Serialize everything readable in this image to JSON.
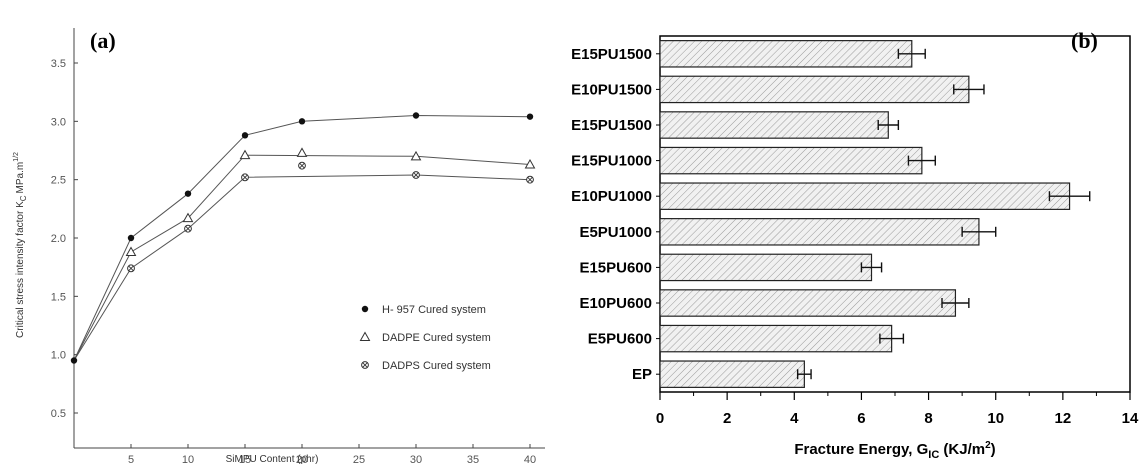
{
  "chart_data": [
    {
      "panel_label": "(a)",
      "type": "line",
      "xlabel": "SiMPU Content (phr)",
      "ylabel": "Critical stress intensity factor K",
      "ylabel_sub": "C",
      "ylabel_unit": "MPa.m",
      "ylabel_sup": "1/2",
      "xlim": [
        0,
        40
      ],
      "ylim": [
        0.2,
        3.8
      ],
      "xticks": [
        "5",
        "10",
        "15",
        "20",
        "25",
        "30",
        "35",
        "40"
      ],
      "yticks": [
        "0.5",
        "1.0",
        "1.5",
        "2.0",
        "2.5",
        "3.0",
        "3.5"
      ],
      "legend_position": "lower-right",
      "series": [
        {
          "name": "H- 957 Cured system",
          "marker": "filled-circle",
          "x": [
            0,
            5,
            10,
            15,
            20,
            30,
            40
          ],
          "y": [
            0.95,
            2.0,
            2.38,
            2.88,
            3.0,
            3.05,
            3.04
          ]
        },
        {
          "name": "DADPE Cured system",
          "marker": "open-triangle",
          "x": [
            0,
            5,
            10,
            15,
            20,
            30,
            40
          ],
          "y": [
            0.95,
            1.88,
            2.17,
            2.71,
            2.73,
            2.7,
            2.63
          ]
        },
        {
          "name": "DADPS Cured system",
          "marker": "crossed-circle",
          "x": [
            0,
            5,
            10,
            15,
            20,
            30,
            40
          ],
          "y": [
            0.95,
            1.74,
            2.08,
            2.52,
            2.62,
            2.54,
            2.5
          ]
        }
      ]
    },
    {
      "panel_label": "(b)",
      "type": "bar",
      "orientation": "horizontal",
      "xlabel": "Fracture Energy, G",
      "xlabel_sub": "IC",
      "xlabel_unit_pre": " (KJ/m",
      "xlabel_sup": "2",
      "xlabel_unit_post": ")",
      "xlim": [
        0,
        14
      ],
      "xticks": [
        "0",
        "2",
        "4",
        "6",
        "8",
        "10",
        "12",
        "14"
      ],
      "categories": [
        "E15PU1500",
        "E10PU1500",
        "E15PU1500",
        "E15PU1000",
        "E10PU1000",
        "E5PU1000",
        "E15PU600",
        "E10PU600",
        "E5PU600",
        "EP"
      ],
      "values": [
        7.5,
        9.2,
        6.8,
        7.8,
        12.2,
        9.5,
        6.3,
        8.8,
        6.9,
        4.3
      ],
      "errors": [
        0.4,
        0.45,
        0.3,
        0.4,
        0.6,
        0.5,
        0.3,
        0.4,
        0.35,
        0.2
      ]
    }
  ]
}
